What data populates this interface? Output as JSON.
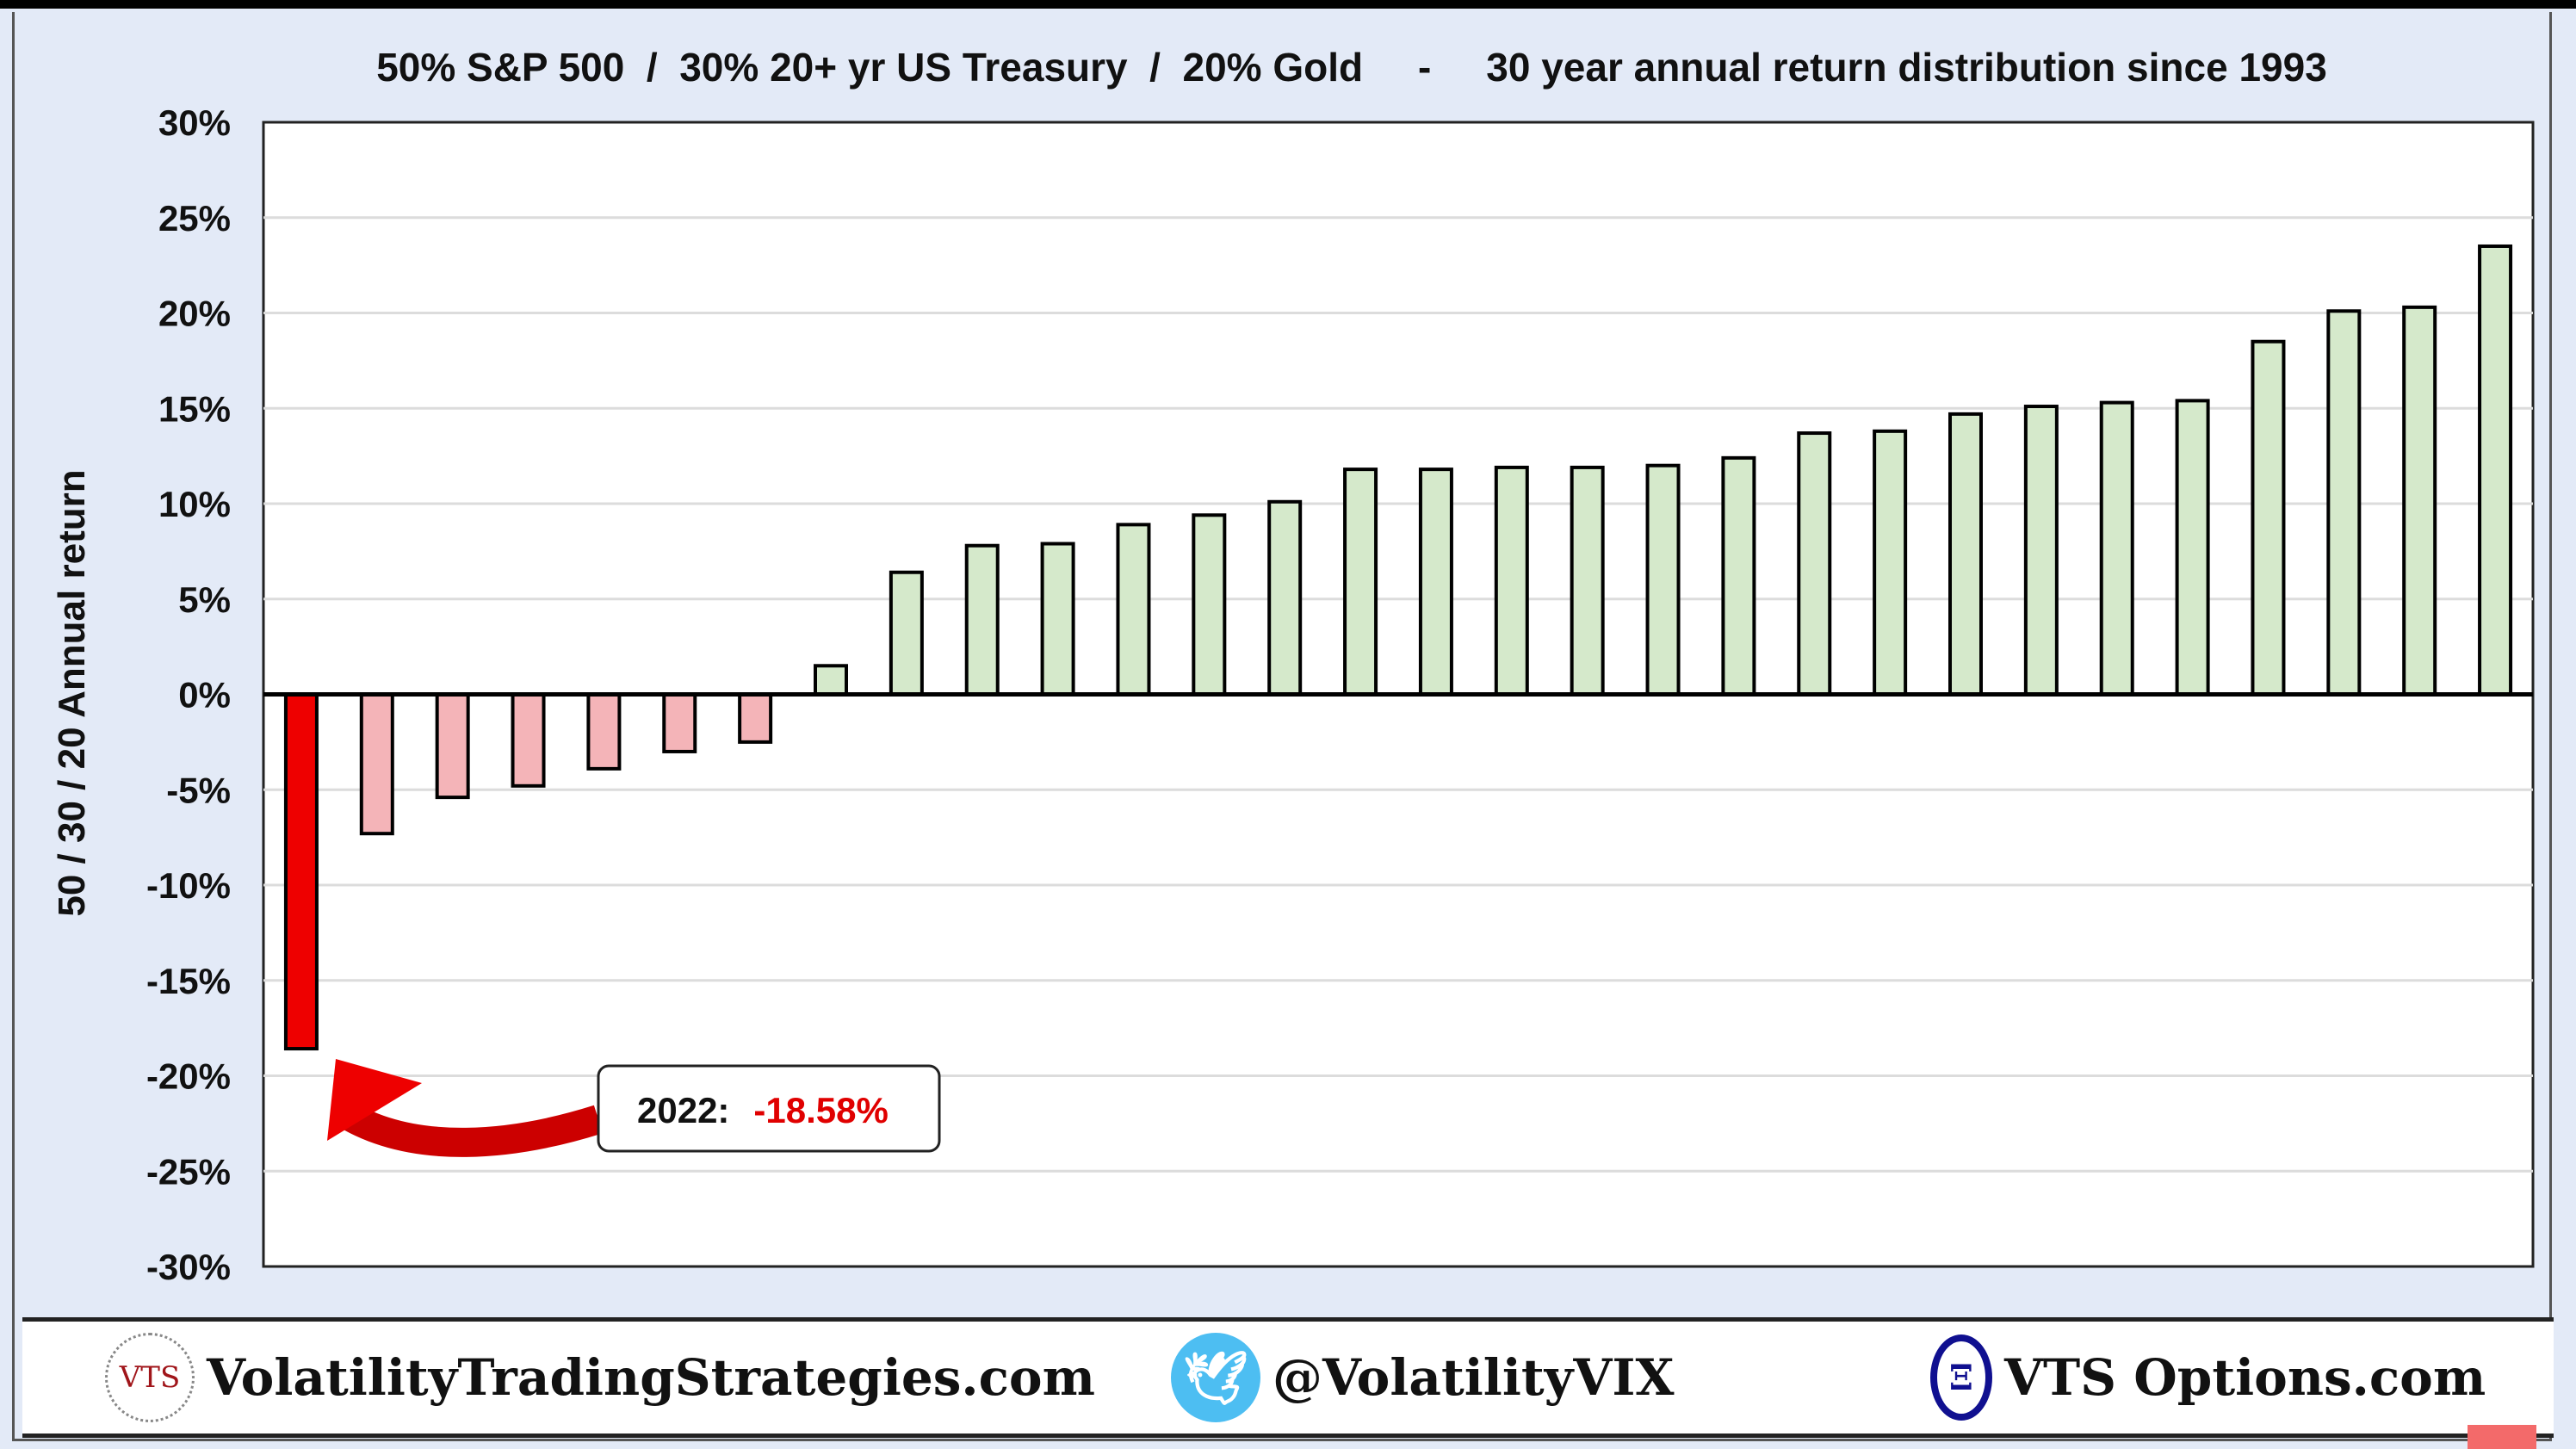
{
  "chart_data": {
    "type": "bar",
    "title": "50% S&P 500  /  30% 20+ yr US Treasury  /  20% Gold     -     30 year annual return distribution since 1993",
    "xlabel": "",
    "ylabel": "50 / 30 / 20 Annual return",
    "ylim": [
      -30,
      30
    ],
    "yticks": [
      "30%",
      "25%",
      "20%",
      "15%",
      "10%",
      "5%",
      "0%",
      "-5%",
      "-10%",
      "-15%",
      "-20%",
      "-25%",
      "-30%"
    ],
    "ytick_values": [
      30,
      25,
      20,
      15,
      10,
      5,
      0,
      -5,
      -10,
      -15,
      -20,
      -25,
      -30
    ],
    "grid": true,
    "sorted": "ascending",
    "values": [
      -18.58,
      -7.3,
      -5.4,
      -4.8,
      -3.9,
      -3.0,
      -2.5,
      1.5,
      6.4,
      7.8,
      7.9,
      8.9,
      9.4,
      10.1,
      11.8,
      11.8,
      11.9,
      11.9,
      12.0,
      12.4,
      13.7,
      13.8,
      14.7,
      15.1,
      15.3,
      15.4,
      18.5,
      20.1,
      20.3,
      23.5
    ],
    "colors": {
      "highlight": "#ee0000",
      "negative": "#f4b4b8",
      "positive": "#d5e9cb",
      "outline": "#000000"
    },
    "annotation": {
      "label": "2022:",
      "value": "-18.58%",
      "value_color": "#e00000"
    }
  },
  "footer": {
    "vts_logo_text": "VTS",
    "website": "VolatilityTradingStrategies.com",
    "twitter": "@VolatilityVIX",
    "options_site": "VTS Options.com"
  }
}
